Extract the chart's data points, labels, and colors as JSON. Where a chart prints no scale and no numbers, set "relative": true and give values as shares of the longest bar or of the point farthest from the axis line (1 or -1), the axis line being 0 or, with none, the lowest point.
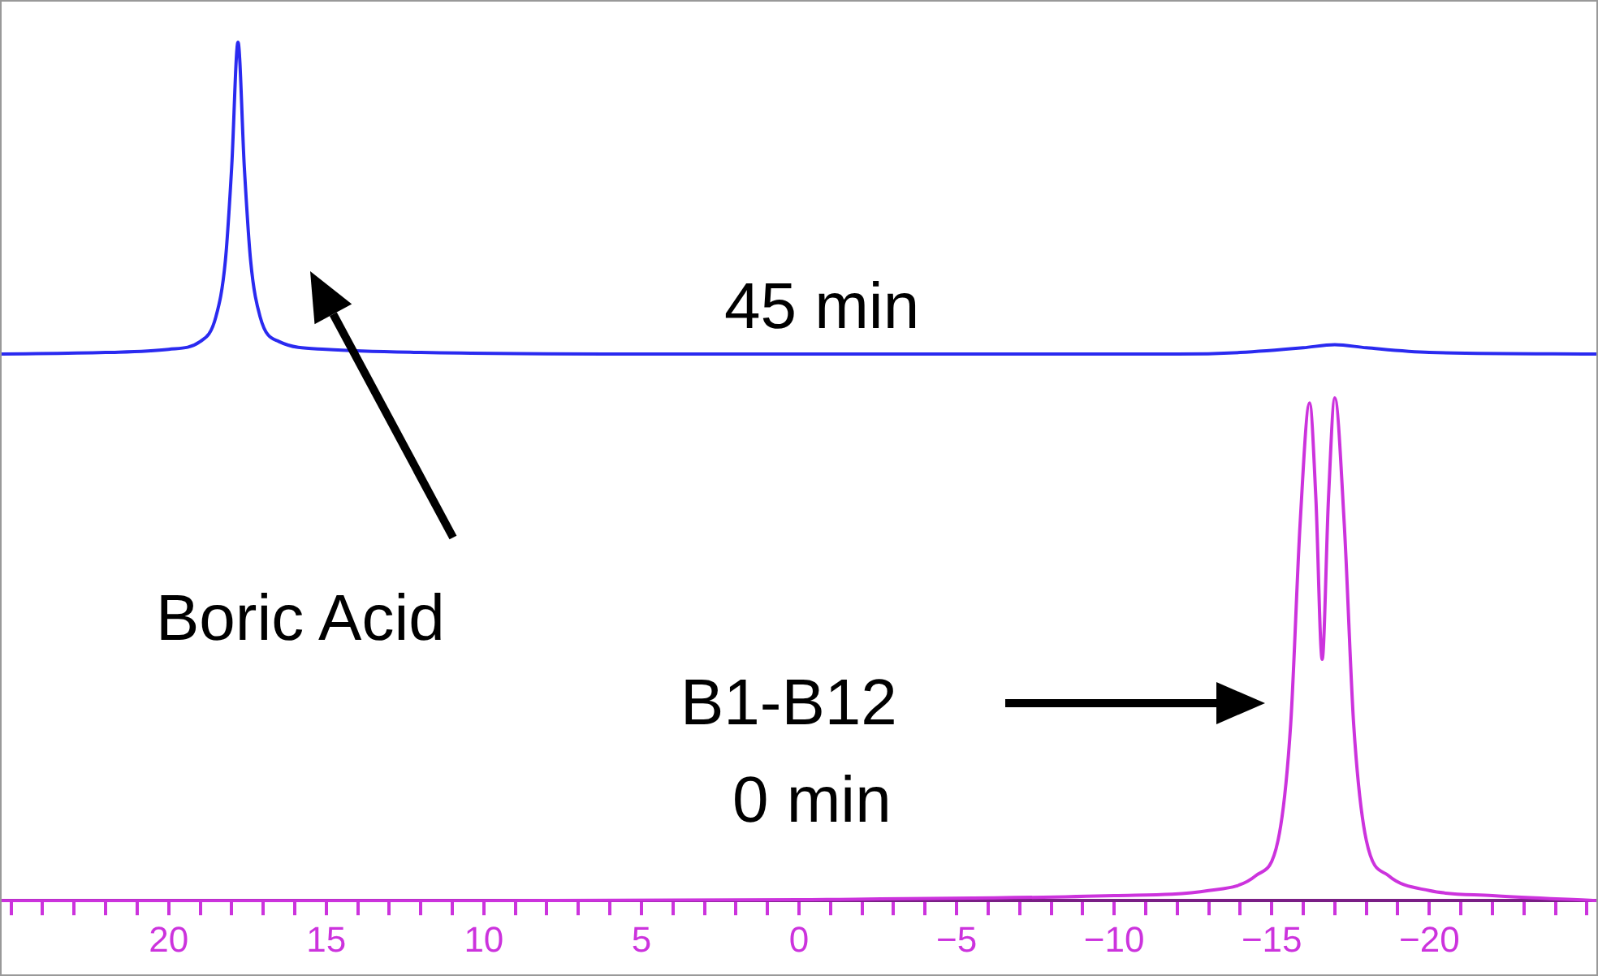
{
  "chart_data": [
    {
      "type": "line",
      "relative": true,
      "tick_labels": false,
      "xlim": [
        25.3,
        -25.3
      ],
      "annotations": [
        "45 min",
        "Boric Acid"
      ],
      "series": [
        {
          "color": "#2a2af0",
          "x": [
            25.3,
            22,
            20,
            19,
            18.5,
            18.2,
            18.0,
            17.8,
            17.6,
            17.4,
            17.1,
            16.5,
            15,
            12,
            5,
            -5,
            -12,
            -14,
            -16,
            -17,
            -18,
            -20,
            -25.3
          ],
          "values": [
            0,
            0.005,
            0.015,
            0.04,
            0.12,
            0.3,
            0.6,
            1,
            0.6,
            0.3,
            0.12,
            0.04,
            0.015,
            0.005,
            0,
            0,
            0,
            0.005,
            0.02,
            0.03,
            0.02,
            0.005,
            0
          ]
        }
      ]
    },
    {
      "type": "line",
      "relative": true,
      "xlim": [
        25.3,
        -25.3
      ],
      "annotations": [
        "B1-B12",
        "0 min"
      ],
      "xticks": [
        {
          "value": 25,
          "label": null
        },
        {
          "value": 24,
          "label": null
        },
        {
          "value": 23,
          "label": null
        },
        {
          "value": 22,
          "label": null
        },
        {
          "value": 21,
          "label": null
        },
        20,
        {
          "value": 19,
          "label": null
        },
        {
          "value": 18,
          "label": null
        },
        {
          "value": 17,
          "label": null
        },
        {
          "value": 16,
          "label": null
        },
        15,
        {
          "value": 14,
          "label": null
        },
        {
          "value": 13,
          "label": null
        },
        {
          "value": 12,
          "label": null
        },
        {
          "value": 11,
          "label": null
        },
        10,
        {
          "value": 9,
          "label": null
        },
        {
          "value": 8,
          "label": null
        },
        {
          "value": 7,
          "label": null
        },
        {
          "value": 6,
          "label": null
        },
        5,
        {
          "value": 4,
          "label": null
        },
        {
          "value": 3,
          "label": null
        },
        {
          "value": 2,
          "label": null
        },
        {
          "value": 1,
          "label": null
        },
        0,
        {
          "value": -1,
          "label": null
        },
        {
          "value": -2,
          "label": null
        },
        {
          "value": -3,
          "label": null
        },
        {
          "value": -4,
          "label": null
        },
        {
          "value": -5,
          "label": "−5"
        },
        {
          "value": -6,
          "label": null
        },
        {
          "value": -7,
          "label": null
        },
        {
          "value": -8,
          "label": null
        },
        {
          "value": -9,
          "label": null
        },
        {
          "value": -10,
          "label": "−10"
        },
        {
          "value": -11,
          "label": null
        },
        {
          "value": -12,
          "label": null
        },
        {
          "value": -13,
          "label": null
        },
        {
          "value": -14,
          "label": null
        },
        {
          "value": -15,
          "label": "−15"
        },
        {
          "value": -16,
          "label": null
        },
        {
          "value": -17,
          "label": null
        },
        {
          "value": -18,
          "label": null
        },
        {
          "value": -19,
          "label": null
        },
        {
          "value": -20,
          "label": "−20"
        },
        {
          "value": -21,
          "label": null
        },
        {
          "value": -22,
          "label": null
        },
        {
          "value": -23,
          "label": null
        },
        {
          "value": -24,
          "label": null
        },
        {
          "value": -25,
          "label": null
        }
      ],
      "series": [
        {
          "color": "#cc33dd",
          "x": [
            25.3,
            10,
            0,
            -10,
            -13,
            -14.5,
            -15.2,
            -15.6,
            -15.9,
            -16.2,
            -16.4,
            -16.6,
            -16.8,
            -17.0,
            -17.3,
            -17.6,
            -18,
            -18.7,
            -20,
            -22,
            -25.3
          ],
          "values": [
            0,
            0,
            0.002,
            0.01,
            0.02,
            0.05,
            0.12,
            0.35,
            0.75,
            0.99,
            0.8,
            0.48,
            0.8,
            1,
            0.75,
            0.35,
            0.12,
            0.05,
            0.02,
            0.01,
            0
          ]
        }
      ]
    }
  ]
}
